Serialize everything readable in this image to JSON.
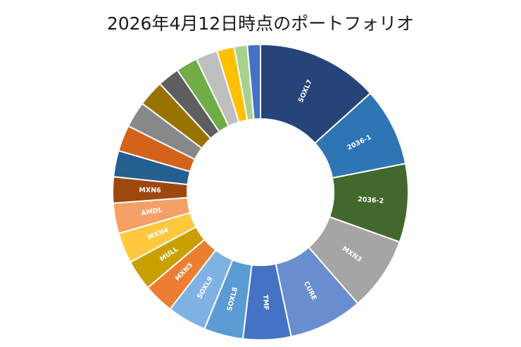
{
  "chart_data": {
    "type": "pie",
    "title": "2026年4月12日時点のポートフォリオ",
    "donut": true,
    "legend": "none",
    "slices": [
      {
        "label": "SOXL7",
        "value": 14.0,
        "color": "#264478"
      },
      {
        "label": "2036-1",
        "value": 9.0,
        "color": "#2E75B6"
      },
      {
        "label": "2036-2",
        "value": 9.0,
        "color": "#43682B"
      },
      {
        "label": "MXN3",
        "value": 8.5,
        "color": "#A5A5A5"
      },
      {
        "label": "CURE",
        "value": 8.5,
        "color": "#698ED0"
      },
      {
        "label": "TMF",
        "value": 5.5,
        "color": "#4472C4"
      },
      {
        "label": "SOXL8",
        "value": 4.5,
        "color": "#5B9BD5"
      },
      {
        "label": "SOXL9",
        "value": 4.5,
        "color": "#7FB2E3"
      },
      {
        "label": "MXN5",
        "value": 3.5,
        "color": "#ED7D31"
      },
      {
        "label": "MULL",
        "value": 3.5,
        "color": "#C9A000"
      },
      {
        "label": "MXN4",
        "value": 3.5,
        "color": "#FFC83D"
      },
      {
        "label": "AMDL",
        "value": 3.5,
        "color": "#F4A066"
      },
      {
        "label": "MXN6",
        "value": 3.0,
        "color": "#9E480E"
      },
      {
        "label": "",
        "value": 3.0,
        "color": "#255E91"
      },
      {
        "label": "",
        "value": 3.0,
        "color": "#D3621A"
      },
      {
        "label": "",
        "value": 3.0,
        "color": "#888888"
      },
      {
        "label": "",
        "value": 3.0,
        "color": "#997300"
      },
      {
        "label": "",
        "value": 2.5,
        "color": "#5E5E5E"
      },
      {
        "label": "",
        "value": 2.5,
        "color": "#70AD47"
      },
      {
        "label": "",
        "value": 2.5,
        "color": "#BFBFBF"
      },
      {
        "label": "",
        "value": 2.0,
        "color": "#FFC000"
      },
      {
        "label": "",
        "value": 1.5,
        "color": "#A9D18E"
      },
      {
        "label": "",
        "value": 1.5,
        "color": "#4472C4"
      }
    ]
  }
}
